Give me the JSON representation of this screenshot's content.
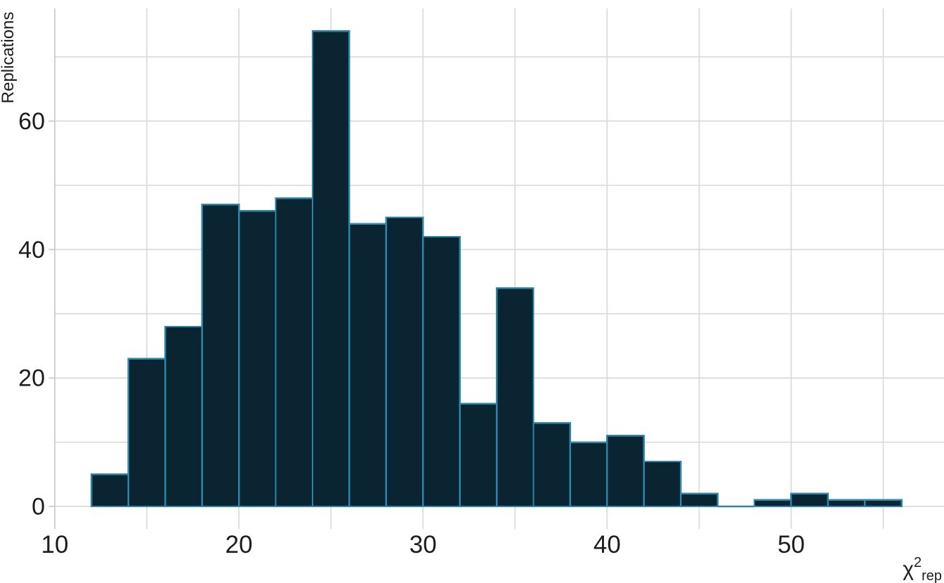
{
  "chart_data": {
    "type": "bar",
    "subtype": "histogram",
    "title": "",
    "xlabel": "χ2rep",
    "xlabel_parts": {
      "base": "χ",
      "superscript": "2",
      "subscript": "rep"
    },
    "ylabel": "Replications",
    "bin_width": 2,
    "bin_edges": [
      12,
      14,
      16,
      18,
      20,
      22,
      24,
      26,
      28,
      30,
      32,
      34,
      36,
      38,
      40,
      42,
      44,
      46,
      48,
      50,
      52,
      54,
      56
    ],
    "values": [
      5,
      23,
      28,
      47,
      46,
      48,
      74,
      44,
      45,
      42,
      16,
      34,
      13,
      10,
      11,
      7,
      2,
      0,
      1,
      2,
      1,
      1
    ],
    "x_ticks": [
      10,
      20,
      30,
      40,
      50
    ],
    "x_tick_labels": [
      "10",
      "20",
      "30",
      "40",
      "50"
    ],
    "y_ticks": [
      0,
      20,
      40,
      60
    ],
    "y_tick_labels": [
      "0",
      "20",
      "40",
      "60"
    ],
    "x_gridlines": [
      10,
      15,
      20,
      25,
      30,
      35,
      40,
      45,
      50,
      55
    ],
    "y_gridlines": [
      0,
      10,
      20,
      30,
      40,
      50,
      60,
      70
    ],
    "xlim": [
      10,
      58.3
    ],
    "ylim": [
      -3.5,
      77.54
    ],
    "grid": true,
    "legend_position": "none",
    "colors": {
      "bar_fill": "#0a2432",
      "bar_stroke": "#2b86a8",
      "gridline": "#dadada",
      "axis_line": "#c9c9c9",
      "text": "#1d1d1d",
      "background": "#ffffff"
    }
  }
}
